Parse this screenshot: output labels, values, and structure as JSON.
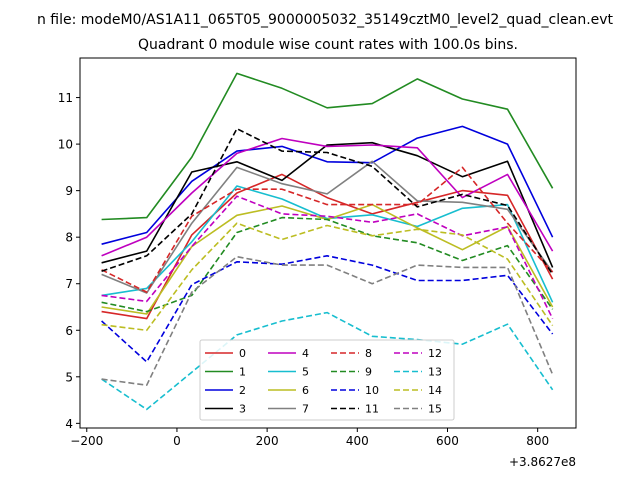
{
  "chart_data": {
    "type": "line",
    "suptitle": "n file: modeM0/AS1A11_065T05_9000005032_35149cztM0_level2_quad_clean.evt",
    "title": "Quadrant 0 module wise count rates with 100.0s bins.",
    "xlabel": "",
    "ylabel": "",
    "offset_text": "+3.8627e8",
    "xlim": [
      -215,
      885
    ],
    "ylim": [
      3.9,
      11.85
    ],
    "xticks": [
      -200,
      0,
      200,
      400,
      600,
      800
    ],
    "xtick_labels": [
      "−200",
      "0",
      "200",
      "400",
      "600",
      "800"
    ],
    "yticks": [
      4,
      5,
      6,
      7,
      8,
      9,
      10,
      11
    ],
    "ytick_labels": [
      "4",
      "5",
      "6",
      "7",
      "8",
      "9",
      "10",
      "11"
    ],
    "grid": false,
    "legend_position": "lower center",
    "x": [
      -167,
      -67,
      33,
      133,
      233,
      333,
      433,
      533,
      633,
      733,
      833
    ],
    "series": [
      {
        "name": "0",
        "color": "#d62728",
        "dash": "solid",
        "values": [
          6.4,
          6.25,
          8.05,
          8.95,
          9.35,
          8.85,
          8.5,
          8.75,
          9.0,
          8.9,
          7.1
        ]
      },
      {
        "name": "1",
        "color": "#228b22",
        "dash": "solid",
        "values": [
          8.38,
          8.42,
          9.72,
          11.52,
          11.2,
          10.78,
          10.87,
          11.4,
          10.97,
          10.75,
          9.05
        ]
      },
      {
        "name": "2",
        "color": "#0000dd",
        "dash": "solid",
        "values": [
          7.85,
          8.1,
          9.2,
          9.85,
          9.95,
          9.62,
          9.6,
          10.13,
          10.38,
          10.0,
          8.0
        ]
      },
      {
        "name": "3",
        "color": "#000000",
        "dash": "solid",
        "values": [
          7.45,
          7.7,
          9.4,
          9.62,
          9.22,
          9.98,
          10.03,
          9.75,
          9.3,
          9.63,
          7.35
        ]
      },
      {
        "name": "4",
        "color": "#bf00bf",
        "dash": "solid",
        "values": [
          7.6,
          8.0,
          8.95,
          9.8,
          10.12,
          9.95,
          9.98,
          9.92,
          8.85,
          9.35,
          7.7
        ]
      },
      {
        "name": "5",
        "color": "#17becf",
        "dash": "solid",
        "values": [
          6.75,
          6.9,
          7.9,
          9.1,
          8.82,
          8.4,
          8.48,
          8.23,
          8.62,
          8.7,
          6.6
        ]
      },
      {
        "name": "6",
        "color": "#bcbd22",
        "dash": "solid",
        "values": [
          6.5,
          6.35,
          7.8,
          8.47,
          8.67,
          8.38,
          8.7,
          8.2,
          7.73,
          8.23,
          6.5
        ]
      },
      {
        "name": "7",
        "color": "#808080",
        "dash": "solid",
        "values": [
          7.2,
          6.8,
          8.3,
          9.5,
          9.15,
          8.93,
          9.63,
          8.78,
          8.75,
          8.6,
          7.25
        ]
      },
      {
        "name": "8",
        "color": "#d62728",
        "dash": "dashed",
        "values": [
          7.3,
          6.82,
          8.45,
          9.03,
          9.03,
          8.7,
          8.7,
          8.7,
          9.5,
          8.3,
          7.25
        ]
      },
      {
        "name": "9",
        "color": "#228b22",
        "dash": "dashed",
        "values": [
          6.6,
          6.4,
          6.75,
          8.1,
          8.42,
          8.38,
          8.03,
          7.88,
          7.5,
          7.82,
          6.45
        ]
      },
      {
        "name": "10",
        "color": "#0000dd",
        "dash": "dashed",
        "values": [
          6.2,
          5.32,
          6.98,
          7.47,
          7.42,
          7.6,
          7.4,
          7.07,
          7.07,
          7.18,
          5.92
        ]
      },
      {
        "name": "11",
        "color": "#000000",
        "dash": "dashed",
        "values": [
          7.27,
          7.6,
          8.5,
          10.33,
          9.85,
          9.82,
          9.52,
          8.65,
          8.92,
          8.68,
          7.2
        ]
      },
      {
        "name": "12",
        "color": "#bf00bf",
        "dash": "dashed",
        "values": [
          6.75,
          6.62,
          7.8,
          8.88,
          8.5,
          8.45,
          8.32,
          8.5,
          8.03,
          8.22,
          6.25
        ]
      },
      {
        "name": "13",
        "color": "#17becf",
        "dash": "dashed",
        "values": [
          4.95,
          4.3,
          5.1,
          5.9,
          6.2,
          6.38,
          5.87,
          5.8,
          5.7,
          6.13,
          4.72
        ]
      },
      {
        "name": "14",
        "color": "#bcbd22",
        "dash": "dashed",
        "values": [
          6.12,
          6.0,
          7.3,
          8.3,
          7.95,
          8.25,
          8.03,
          8.17,
          8.05,
          7.53,
          6.1
        ]
      },
      {
        "name": "15",
        "color": "#808080",
        "dash": "dashed",
        "values": [
          4.95,
          4.82,
          6.82,
          7.58,
          7.4,
          7.4,
          7.0,
          7.4,
          7.35,
          7.35,
          5.05
        ]
      }
    ]
  }
}
